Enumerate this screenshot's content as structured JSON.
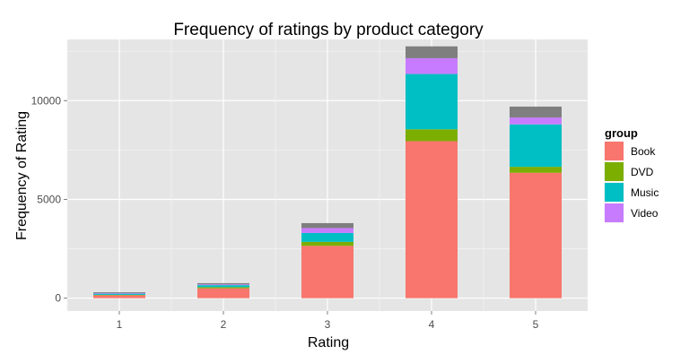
{
  "chart_data": {
    "type": "bar",
    "stacked": true,
    "title": "Frequency of ratings by product category",
    "xlabel": "Rating",
    "ylabel": "Frequency of Rating",
    "categories": [
      "1",
      "2",
      "3",
      "4",
      "5"
    ],
    "ylim": [
      -650,
      13100
    ],
    "yticks": [
      0,
      5000,
      10000
    ],
    "grid": true,
    "legend": {
      "title": "group",
      "position": "right"
    },
    "series": [
      {
        "name": "Book",
        "color": "#F8766D",
        "values": [
          150,
          500,
          2650,
          7950,
          6350
        ]
      },
      {
        "name": "DVD",
        "color": "#7CAE00",
        "values": [
          20,
          60,
          200,
          600,
          300
        ]
      },
      {
        "name": "Music",
        "color": "#00BFC4",
        "values": [
          60,
          100,
          450,
          2800,
          2150
        ]
      },
      {
        "name": "Video",
        "color": "#C77CFF",
        "values": [
          30,
          40,
          250,
          800,
          350
        ]
      },
      {
        "color": "#7F7F7F",
        "values": [
          40,
          60,
          250,
          600,
          550
        ],
        "in_legend": false
      }
    ]
  }
}
